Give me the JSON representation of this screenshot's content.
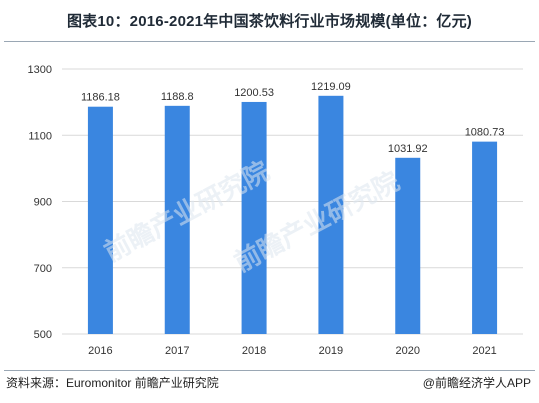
{
  "header": {
    "title": "图表10：2016-2021年中国茶饮料行业市场规模(单位：亿元)"
  },
  "footer": {
    "source": "资料来源：Euromonitor 前瞻产业研究院",
    "brand": "@前瞻经济学人APP"
  },
  "watermark": {
    "text": "前瞻产业研究院"
  },
  "colors": {
    "bar": "#3a86e0",
    "grid": "#d9d9d9",
    "text": "#333333"
  },
  "chart_data": {
    "type": "bar",
    "categories": [
      "2016",
      "2017",
      "2018",
      "2019",
      "2020",
      "2021"
    ],
    "values": [
      1186.18,
      1188.8,
      1200.53,
      1219.09,
      1031.92,
      1080.73
    ],
    "value_labels": [
      "1186.18",
      "1188.8",
      "1200.53",
      "1219.09",
      "1031.92",
      "1080.73"
    ],
    "ylim": [
      500,
      1300
    ],
    "yticks": [
      500,
      700,
      900,
      1100,
      1300
    ],
    "grid": true,
    "legend": "none",
    "title": "",
    "xlabel": "",
    "ylabel": ""
  }
}
